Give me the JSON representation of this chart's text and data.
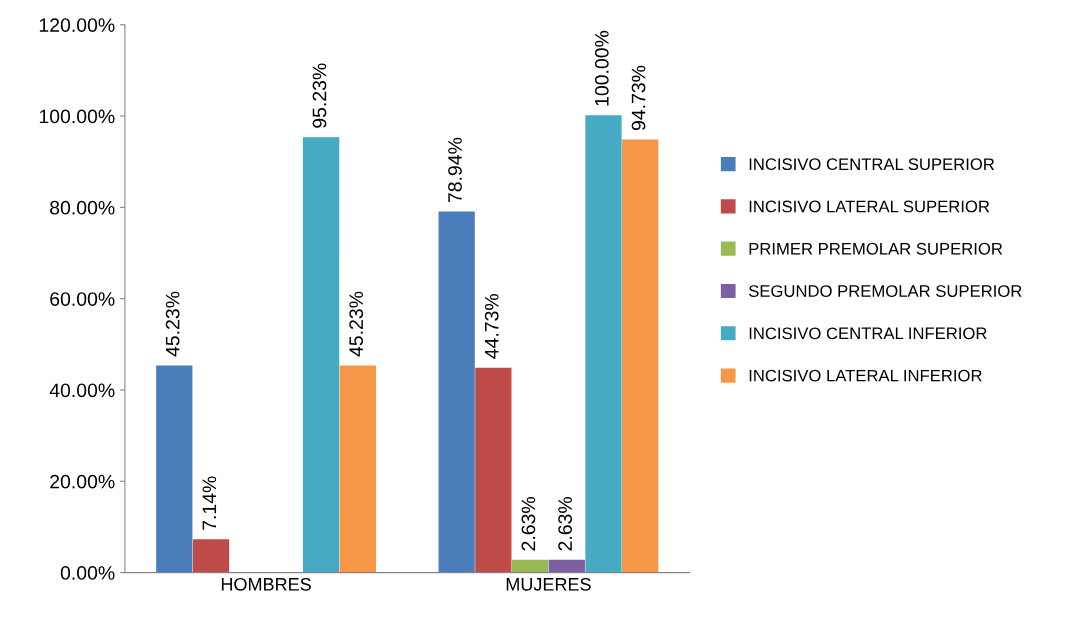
{
  "chart_data": {
    "type": "bar",
    "categories": [
      "HOMBRES",
      "MUJERES"
    ],
    "series": [
      {
        "name": "INCISIVO CENTRAL SUPERIOR",
        "color": "#4a7ebb",
        "values": [
          45.23,
          78.94
        ],
        "value_labels": [
          "45.23%",
          "78.94%"
        ]
      },
      {
        "name": "INCISIVO LATERAL SUPERIOR",
        "color": "#be4b48",
        "values": [
          7.14,
          44.73
        ],
        "value_labels": [
          "7.14%",
          "44.73%"
        ]
      },
      {
        "name": "PRIMER PREMOLAR SUPERIOR",
        "color": "#98b954",
        "values": [
          null,
          2.63
        ],
        "value_labels": [
          null,
          "2.63%"
        ]
      },
      {
        "name": "SEGUNDO PREMOLAR SUPERIOR",
        "color": "#7d60a0",
        "values": [
          null,
          2.63
        ],
        "value_labels": [
          null,
          "2.63%"
        ]
      },
      {
        "name": "INCISIVO CENTRAL INFERIOR",
        "color": "#46aac5",
        "values": [
          95.23,
          100.0
        ],
        "value_labels": [
          "95.23%",
          "100.00%"
        ]
      },
      {
        "name": "INCISIVO LATERAL INFERIOR",
        "color": "#f79646",
        "values": [
          45.23,
          94.73
        ],
        "value_labels": [
          "45.23%",
          "94.73%"
        ]
      }
    ],
    "ylim": [
      0,
      120
    ],
    "yticks": [
      {
        "value": 0,
        "label": "0.00%"
      },
      {
        "value": 20,
        "label": "20.00%"
      },
      {
        "value": 40,
        "label": "40.00%"
      },
      {
        "value": 60,
        "label": "60.00%"
      },
      {
        "value": 80,
        "label": "80.00%"
      },
      {
        "value": 100,
        "label": "100.00%"
      },
      {
        "value": 120,
        "label": "120.00%"
      }
    ],
    "grid": false,
    "legend": "right"
  }
}
